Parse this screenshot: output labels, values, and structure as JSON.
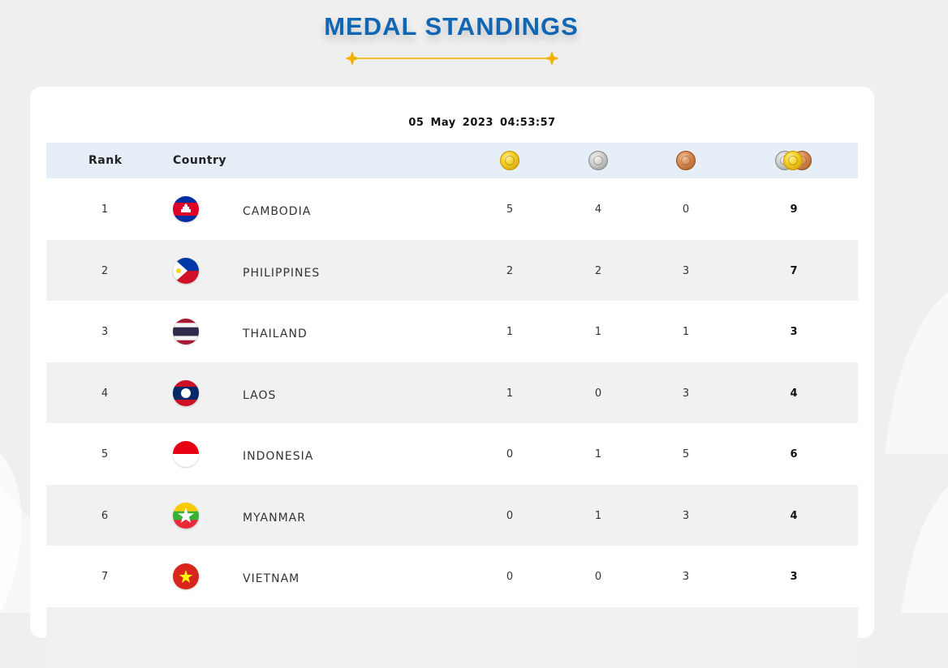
{
  "page": {
    "title": "MEDAL STANDINGS",
    "timestamp_date": "05 May 2023",
    "timestamp_time": "04:53:57"
  },
  "table": {
    "headers": {
      "rank": "Rank",
      "country": "Country",
      "gold_icon": "gold-medal-icon",
      "silver_icon": "silver-medal-icon",
      "bronze_icon": "bronze-medal-icon",
      "total_icon": "total-medals-icon"
    },
    "rows": [
      {
        "rank": "1",
        "country": "CAMBODIA",
        "flag": "cambodia-flag-icon",
        "gold": "5",
        "silver": "4",
        "bronze": "0",
        "total": "9"
      },
      {
        "rank": "2",
        "country": "PHILIPPINES",
        "flag": "philippines-flag-icon",
        "gold": "2",
        "silver": "2",
        "bronze": "3",
        "total": "7"
      },
      {
        "rank": "3",
        "country": "THAILAND",
        "flag": "thailand-flag-icon",
        "gold": "1",
        "silver": "1",
        "bronze": "1",
        "total": "3"
      },
      {
        "rank": "4",
        "country": "LAOS",
        "flag": "laos-flag-icon",
        "gold": "1",
        "silver": "0",
        "bronze": "3",
        "total": "4"
      },
      {
        "rank": "5",
        "country": "INDONESIA",
        "flag": "indonesia-flag-icon",
        "gold": "0",
        "silver": "1",
        "bronze": "5",
        "total": "6"
      },
      {
        "rank": "6",
        "country": "MYANMAR",
        "flag": "myanmar-flag-icon",
        "gold": "0",
        "silver": "1",
        "bronze": "3",
        "total": "4"
      },
      {
        "rank": "7",
        "country": "VIETNAM",
        "flag": "vietnam-flag-icon",
        "gold": "0",
        "silver": "0",
        "bronze": "3",
        "total": "3"
      }
    ]
  },
  "colors": {
    "title_blue": "#1166b4",
    "accent_gold": "#f0b400",
    "header_row_bg": "#e6eef8",
    "alt_row_bg": "#f1f1f1"
  }
}
